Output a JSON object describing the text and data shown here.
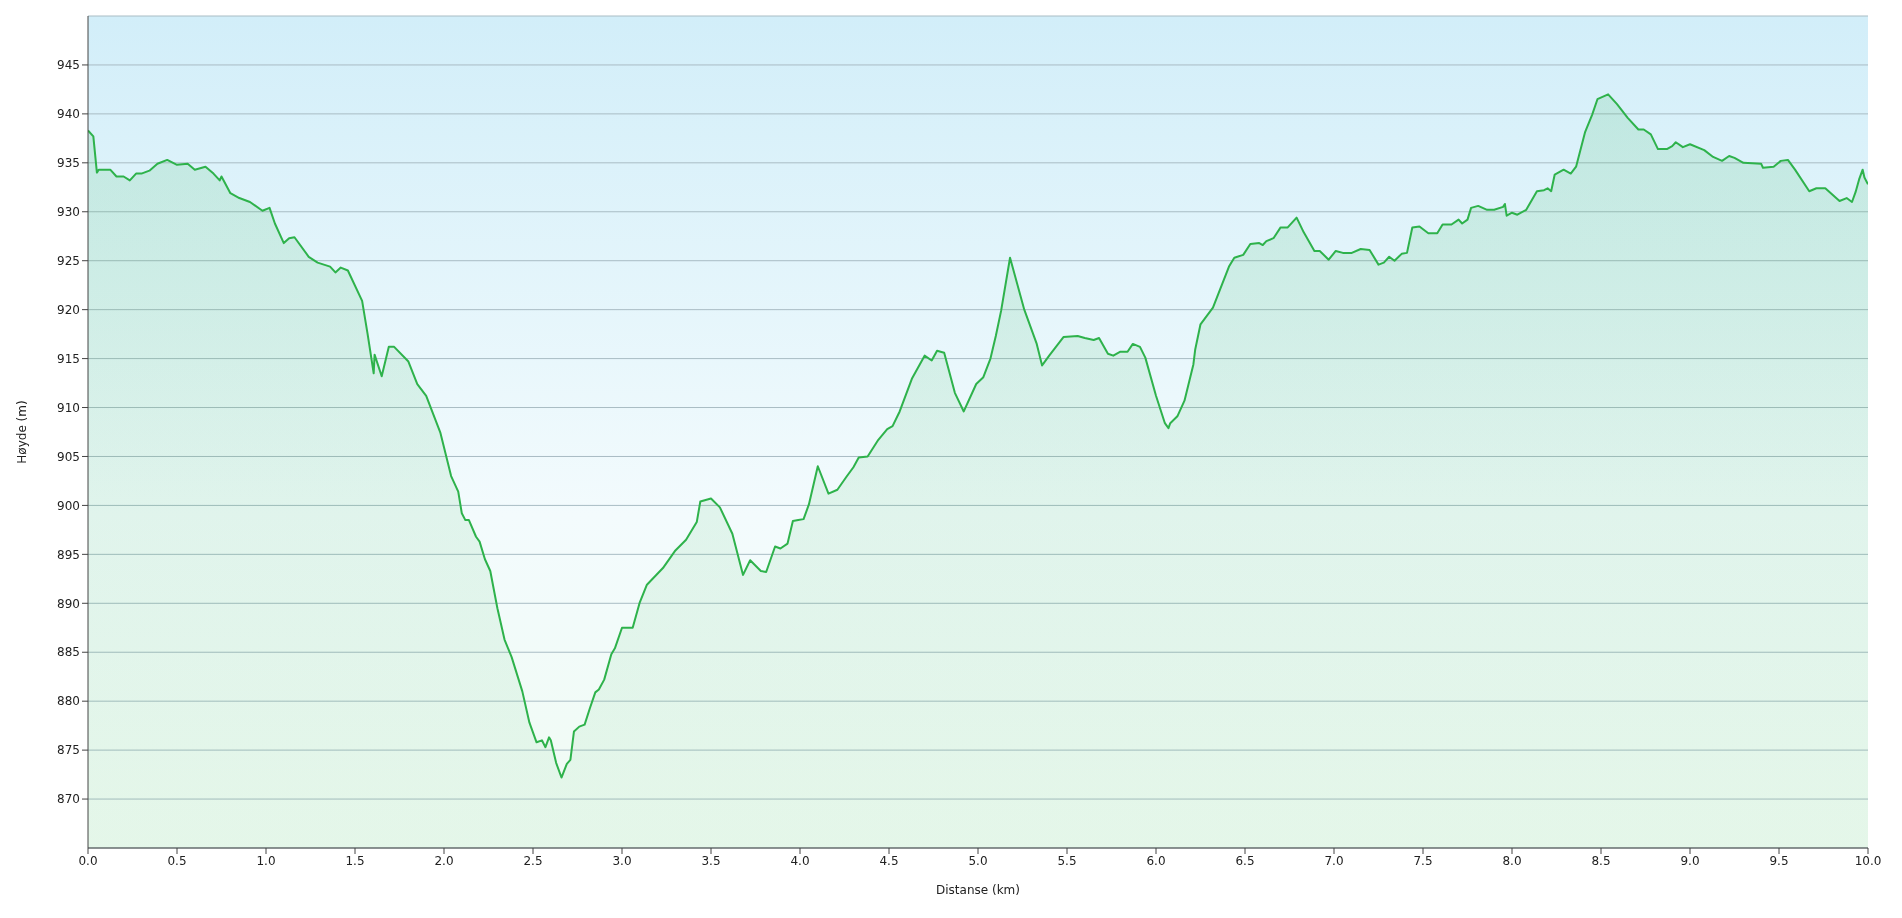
{
  "chart_data": {
    "type": "area",
    "xlabel": "Distanse (km)",
    "ylabel": "Høyde (m)",
    "color": "#2eb24b",
    "grid": "y",
    "xlim": [
      0,
      10
    ],
    "ylim": [
      865,
      950
    ],
    "xticks": [
      {
        "value": 0,
        "label": "0.0"
      },
      {
        "value": 0.5,
        "label": "0.5"
      },
      {
        "value": 1,
        "label": "1.0"
      },
      {
        "value": 1.5,
        "label": "1.5"
      },
      {
        "value": 2,
        "label": "2.0"
      },
      {
        "value": 2.5,
        "label": "2.5"
      },
      {
        "value": 3,
        "label": "3.0"
      },
      {
        "value": 3.5,
        "label": "3.5"
      },
      {
        "value": 4,
        "label": "4.0"
      },
      {
        "value": 4.5,
        "label": "4.5"
      },
      {
        "value": 5,
        "label": "5.0"
      },
      {
        "value": 5.5,
        "label": "5.5"
      },
      {
        "value": 6,
        "label": "6.0"
      },
      {
        "value": 6.5,
        "label": "6.5"
      },
      {
        "value": 7,
        "label": "7.0"
      },
      {
        "value": 7.5,
        "label": "7.5"
      },
      {
        "value": 8,
        "label": "8.0"
      },
      {
        "value": 8.5,
        "label": "8.5"
      },
      {
        "value": 9,
        "label": "9.0"
      },
      {
        "value": 9.5,
        "label": "9.5"
      },
      {
        "value": 10,
        "label": "10.0"
      }
    ],
    "yticks": [
      870,
      875,
      880,
      885,
      890,
      895,
      900,
      905,
      910,
      915,
      920,
      925,
      930,
      935,
      940,
      945
    ],
    "x": [
      0,
      0.03,
      0.05,
      0.06,
      0.125,
      0.16,
      0.2,
      0.235,
      0.27,
      0.3,
      0.345,
      0.39,
      0.445,
      0.5,
      0.56,
      0.6,
      0.66,
      0.705,
      0.74,
      0.75,
      0.8,
      0.85,
      0.91,
      0.98,
      1.02,
      1.05,
      1.1,
      1.13,
      1.16,
      1.24,
      1.29,
      1.36,
      1.39,
      1.42,
      1.46,
      1.54,
      1.57,
      1.605,
      1.61,
      1.65,
      1.69,
      1.72,
      1.8,
      1.85,
      1.9,
      1.98,
      2.04,
      2.08,
      2.1,
      2.12,
      2.14,
      2.18,
      2.2,
      2.23,
      2.26,
      2.3,
      2.34,
      2.38,
      2.44,
      2.48,
      2.52,
      2.55,
      2.57,
      2.59,
      2.6,
      2.63,
      2.66,
      2.69,
      2.71,
      2.73,
      2.76,
      2.79,
      2.82,
      2.85,
      2.87,
      2.9,
      2.94,
      2.96,
      3.0,
      3.06,
      3.1,
      3.14,
      3.23,
      3.3,
      3.36,
      3.42,
      3.44,
      3.5,
      3.55,
      3.62,
      3.68,
      3.72,
      3.78,
      3.81,
      3.86,
      3.89,
      3.93,
      3.96,
      3.99,
      4.02,
      4.05,
      4.1,
      4.16,
      4.21,
      4.26,
      4.3,
      4.33,
      4.38,
      4.44,
      4.49,
      4.52,
      4.56,
      4.63,
      4.7,
      4.74,
      4.77,
      4.81,
      4.87,
      4.92,
      4.99,
      5.03,
      5.07,
      5.1,
      5.13,
      5.18,
      5.26,
      5.33,
      5.36,
      5.4,
      5.48,
      5.56,
      5.6,
      5.65,
      5.68,
      5.73,
      5.76,
      5.8,
      5.84,
      5.87,
      5.91,
      5.94,
      6.0,
      6.05,
      6.07,
      6.08,
      6.12,
      6.16,
      6.21,
      6.22,
      6.25,
      6.32,
      6.41,
      6.44,
      6.49,
      6.53,
      6.58,
      6.6,
      6.62,
      6.66,
      6.7,
      6.74,
      6.79,
      6.83,
      6.89,
      6.92,
      6.97,
      7.01,
      7.05,
      7.1,
      7.15,
      7.2,
      7.25,
      7.28,
      7.31,
      7.34,
      7.38,
      7.41,
      7.44,
      7.48,
      7.53,
      7.58,
      7.61,
      7.66,
      7.7,
      7.72,
      7.75,
      7.77,
      7.81,
      7.86,
      7.9,
      7.95,
      7.96,
      7.97,
      8.0,
      8.03,
      8.08,
      8.14,
      8.18,
      8.2,
      8.22,
      8.24,
      8.29,
      8.33,
      8.36,
      8.41,
      8.45,
      8.48,
      8.54,
      8.59,
      8.65,
      8.71,
      8.74,
      8.78,
      8.82,
      8.87,
      8.9,
      8.92,
      8.96,
      9.0,
      9.08,
      9.13,
      9.18,
      9.22,
      9.25,
      9.3,
      9.4,
      9.41,
      9.47,
      9.51,
      9.55,
      9.59,
      9.67,
      9.71,
      9.76,
      9.84,
      9.88,
      9.91,
      9.93,
      9.95,
      9.97,
      9.98,
      10.0
    ],
    "values": [
      938.3,
      937.7,
      934.0,
      934.3,
      934.3,
      933.6,
      933.6,
      933.2,
      933.9,
      933.9,
      934.2,
      934.9,
      935.3,
      934.8,
      934.9,
      934.3,
      934.6,
      933.9,
      933.2,
      933.6,
      931.9,
      931.4,
      931.0,
      930.1,
      930.4,
      928.8,
      926.8,
      927.3,
      927.4,
      925.4,
      924.8,
      924.4,
      923.8,
      924.3,
      924.0,
      920.9,
      917.6,
      913.5,
      915.4,
      913.2,
      916.2,
      916.2,
      914.7,
      912.4,
      911.2,
      907.4,
      903.0,
      901.4,
      899.2,
      898.5,
      898.5,
      896.8,
      896.3,
      894.5,
      893.3,
      889.5,
      886.3,
      884.5,
      881.0,
      877.8,
      875.8,
      876.0,
      875.3,
      876.3,
      876.0,
      873.7,
      872.2,
      873.6,
      874.0,
      876.9,
      877.4,
      877.6,
      879.3,
      880.9,
      881.2,
      882.2,
      884.8,
      885.4,
      887.5,
      887.5,
      890.1,
      891.9,
      893.6,
      895.4,
      896.5,
      898.3,
      900.4,
      900.7,
      899.8,
      897.1,
      892.9,
      894.4,
      893.3,
      893.2,
      895.8,
      895.6,
      896.1,
      898.4,
      898.5,
      898.6,
      900.1,
      904.0,
      901.2,
      901.6,
      902.9,
      903.9,
      904.9,
      905.0,
      906.7,
      907.8,
      908.1,
      909.6,
      913.0,
      915.3,
      914.8,
      915.8,
      915.6,
      911.5,
      909.6,
      912.4,
      913.1,
      915.0,
      917.3,
      919.9,
      925.3,
      920.0,
      916.5,
      914.3,
      915.3,
      917.2,
      917.3,
      917.1,
      916.9,
      917.1,
      915.5,
      915.3,
      915.7,
      915.7,
      916.5,
      916.2,
      915.1,
      911.2,
      908.4,
      907.9,
      908.4,
      909.1,
      910.7,
      914.4,
      915.9,
      918.5,
      920.2,
      924.4,
      925.3,
      925.6,
      926.7,
      926.8,
      926.6,
      927.0,
      927.3,
      928.4,
      928.4,
      929.4,
      927.9,
      926.0,
      926.0,
      925.1,
      926.0,
      925.8,
      925.8,
      926.2,
      926.1,
      924.6,
      924.8,
      925.4,
      925.0,
      925.7,
      925.8,
      928.4,
      928.5,
      927.8,
      927.8,
      928.7,
      928.7,
      929.2,
      928.8,
      929.2,
      930.4,
      930.6,
      930.2,
      930.2,
      930.5,
      930.8,
      929.6,
      929.9,
      929.7,
      930.2,
      932.1,
      932.2,
      932.4,
      932.1,
      933.8,
      934.3,
      933.9,
      934.6,
      938.1,
      939.9,
      941.5,
      942.0,
      941.0,
      939.6,
      938.4,
      938.4,
      937.9,
      936.4,
      936.4,
      936.7,
      937.1,
      936.6,
      936.9,
      936.3,
      935.6,
      935.2,
      935.7,
      935.5,
      935.0,
      934.9,
      934.5,
      934.6,
      935.2,
      935.3,
      934.3,
      932.1,
      932.4,
      932.4,
      931.1,
      931.4,
      931.0,
      932.0,
      933.3,
      934.3,
      933.5,
      932.8
    ]
  }
}
